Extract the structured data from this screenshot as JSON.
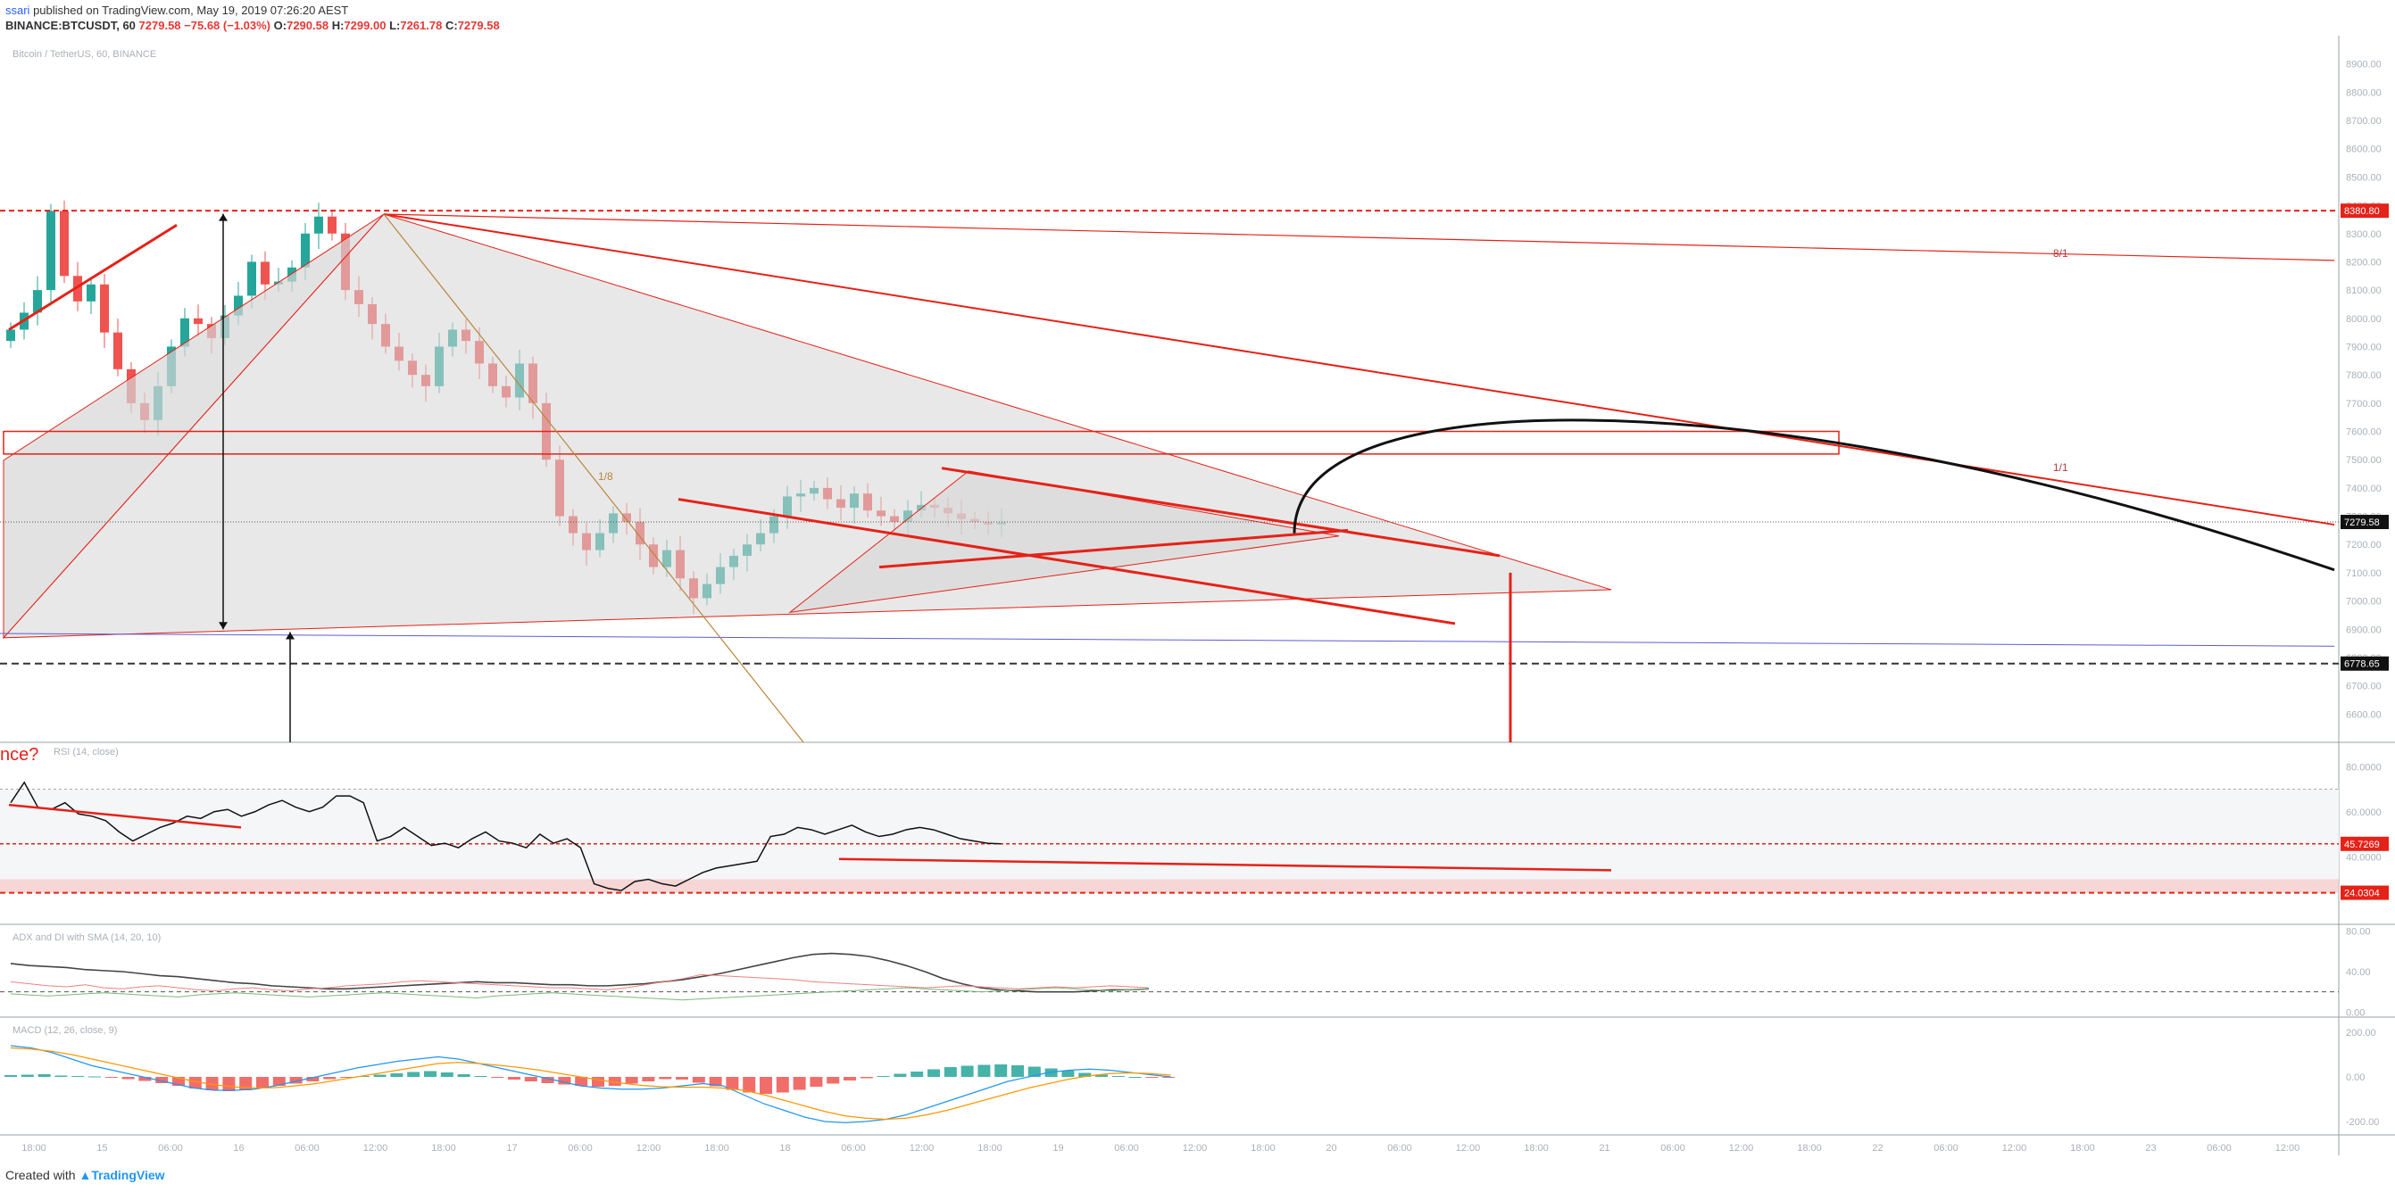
{
  "header": {
    "user": "ssari",
    "published_text": "published on TradingView.com, May 19, 2019 07:26:20 AEST",
    "symbol_interval": "BINANCE:BTCUSDT, 60",
    "last": "7279.58",
    "change": "−75.68 (−1.03%)",
    "o_label": "O:",
    "o_value": "7290.58",
    "h_label": "H:",
    "h_value": "7299.00",
    "l_label": "L:",
    "l_value": "7261.78",
    "c_label": "C:",
    "c_value": "7279.58"
  },
  "footer": {
    "created_with": "Created with",
    "brand": "TradingView",
    "brand_icon": "tradingview-logo-icon"
  },
  "colors": {
    "up": "#26a69a",
    "down": "#ef5350",
    "drawing": "#e62117",
    "fill": "#d6d6d6",
    "axis_text": "#aab0b8",
    "price_label_dark": "#111111",
    "price_label_red": "#e62117"
  },
  "chart_data": [
    {
      "type": "candlestick",
      "title": "Bitcoin / TetherUS, 60, BINANCE",
      "ylim": [
        6500,
        9000
      ],
      "yticks": [
        "8900.00",
        "8800.00",
        "8700.00",
        "8600.00",
        "8500.00",
        "8400.00",
        "8300.00",
        "8200.00",
        "8100.00",
        "8000.00",
        "7900.00",
        "7800.00",
        "7700.00",
        "7600.00",
        "7500.00",
        "7400.00",
        "7300.00",
        "7200.00",
        "7100.00",
        "7000.00",
        "6900.00",
        "6800.00",
        "6700.00",
        "6600.00"
      ],
      "xticks": [
        "18:00",
        "15",
        "06:00",
        "16",
        "06:00",
        "12:00",
        "18:00",
        "17",
        "06:00",
        "12:00",
        "18:00",
        "18",
        "06:00",
        "12:00",
        "18:00",
        "19",
        "06:00",
        "12:00",
        "18:00",
        "20",
        "06:00",
        "12:00",
        "18:00",
        "21",
        "06:00",
        "12:00",
        "18:00",
        "22",
        "06:00",
        "12:00",
        "18:00",
        "23",
        "06:00",
        "12:00"
      ],
      "price_labels": [
        {
          "value": 8380.8,
          "text": "8380.80",
          "style": "red"
        },
        {
          "value": 7279.58,
          "text": "7279.58",
          "style": "dark"
        },
        {
          "value": 6778.65,
          "text": "6778.65",
          "style": "dark"
        }
      ],
      "annotations": [
        {
          "text": "8/1",
          "value": 8230
        },
        {
          "text": "1/1",
          "value": 7440
        },
        {
          "text": "1/8",
          "value": 7440
        }
      ],
      "series_ohlc_anchor_closes": [
        7960,
        8020,
        8100,
        8380,
        8150,
        8060,
        8120,
        7950,
        7820,
        7700,
        7640,
        7760,
        7900,
        8000,
        7980,
        7930,
        8010,
        8080,
        8200,
        8120,
        8130,
        8180,
        8300,
        8360,
        8300,
        8100,
        8050,
        7980,
        7900,
        7850,
        7800,
        7760,
        7900,
        7960,
        7920,
        7840,
        7760,
        7720,
        7840,
        7700,
        7500,
        7300,
        7240,
        7180,
        7240,
        7310,
        7280,
        7200,
        7120,
        7180,
        7080,
        7010,
        7060,
        7120,
        7160,
        7200,
        7240,
        7300,
        7370,
        7380,
        7400,
        7360,
        7330,
        7380,
        7320,
        7300,
        7280,
        7320,
        7340,
        7330,
        7310,
        7290,
        7280,
        7270,
        7279.58
      ]
    },
    {
      "type": "line",
      "title": "RSI (14, close)",
      "heading_text": "nce?",
      "ylim": [
        10,
        90
      ],
      "yticks": [
        "80.0000",
        "60.0000",
        "40.0000"
      ],
      "price_labels": [
        {
          "value": 45.7269,
          "text": "45.7269",
          "style": "red"
        },
        {
          "value": 24.0304,
          "text": "24.0304",
          "style": "red"
        }
      ],
      "values": [
        64,
        73,
        62,
        61,
        64,
        59,
        58,
        56,
        51,
        47,
        50,
        53,
        55,
        58,
        57,
        60,
        61,
        58,
        60,
        63,
        65,
        62,
        60,
        62,
        67,
        67,
        64,
        47,
        49,
        53,
        49,
        45,
        46,
        44,
        48,
        51,
        47,
        46,
        44,
        50,
        46,
        48,
        44,
        28,
        26,
        25,
        29,
        30,
        28,
        27,
        30,
        33,
        35,
        36,
        37,
        38,
        49,
        50,
        53,
        52,
        50,
        52,
        54,
        51,
        49,
        50,
        52,
        53,
        52,
        50,
        48,
        47,
        46,
        45.7269
      ]
    },
    {
      "type": "line",
      "title": "ADX and DI with SMA (14, 20, 10)",
      "ylim": [
        -5,
        85
      ],
      "yticks": [
        "80.00",
        "40.00",
        "0.00"
      ],
      "series": [
        {
          "values": [
            48,
            46,
            45,
            44,
            42,
            41,
            40,
            38,
            36,
            35,
            33,
            31,
            29,
            28,
            26,
            25,
            24,
            23,
            23,
            24,
            25,
            26,
            27,
            28,
            29,
            30,
            29,
            29,
            28,
            27,
            27,
            26,
            26,
            27,
            28,
            30,
            32,
            35,
            38,
            42,
            46,
            50,
            54,
            57,
            58,
            57,
            55,
            51,
            46,
            40,
            33,
            28,
            24,
            22,
            21,
            20,
            20,
            20,
            21,
            22,
            22,
            23
          ]
        },
        {
          "values": [
            30,
            28,
            26,
            25,
            27,
            24,
            23,
            25,
            26,
            24,
            22,
            21,
            23,
            24,
            22,
            21,
            23,
            24,
            26,
            27,
            28,
            30,
            31,
            30,
            29,
            28,
            27,
            26,
            25,
            24,
            24,
            23,
            22,
            24,
            27,
            30,
            33,
            37,
            36,
            35,
            34,
            33,
            32,
            30,
            29,
            28,
            27,
            26,
            25,
            24,
            25,
            26,
            25,
            24,
            23,
            24,
            25,
            24,
            25,
            26,
            25,
            24
          ]
        },
        {
          "values": [
            18,
            17,
            16,
            17,
            18,
            19,
            18,
            17,
            16,
            15,
            17,
            18,
            19,
            18,
            17,
            16,
            15,
            16,
            17,
            18,
            19,
            18,
            17,
            16,
            15,
            14,
            16,
            17,
            18,
            19,
            18,
            17,
            16,
            15,
            14,
            13,
            12,
            13,
            14,
            15,
            16,
            17,
            18,
            19,
            20,
            21,
            22,
            23,
            24,
            23,
            22,
            21,
            20,
            21,
            22,
            23,
            24,
            23,
            22,
            21,
            22,
            23
          ]
        }
      ]
    },
    {
      "type": "bar",
      "title": "MACD (12, 26, close, 9)",
      "ylim": [
        -260,
        260
      ],
      "yticks": [
        "200.00",
        "0.00",
        "-200.00"
      ],
      "histogram": [
        8,
        10,
        12,
        6,
        4,
        2,
        -4,
        -10,
        -18,
        -28,
        -40,
        -52,
        -60,
        -64,
        -60,
        -50,
        -40,
        -30,
        -20,
        -10,
        -4,
        4,
        10,
        16,
        22,
        26,
        20,
        12,
        4,
        -4,
        -12,
        -20,
        -28,
        -34,
        -40,
        -44,
        -40,
        -30,
        -20,
        -10,
        -12,
        -26,
        -42,
        -58,
        -70,
        -76,
        -70,
        -58,
        -44,
        -30,
        -16,
        -6,
        4,
        14,
        24,
        34,
        44,
        50,
        54,
        56,
        52,
        46,
        38,
        28,
        18,
        10,
        4,
        0,
        -2,
        -4
      ],
      "series": [
        {
          "values": [
            140,
            130,
            110,
            80,
            50,
            30,
            10,
            -10,
            -30,
            -50,
            -60,
            -60,
            -55,
            -40,
            -20,
            0,
            20,
            40,
            55,
            70,
            80,
            90,
            80,
            60,
            40,
            20,
            0,
            -20,
            -40,
            -50,
            -55,
            -55,
            -50,
            -40,
            -30,
            -40,
            -80,
            -120,
            -150,
            -180,
            -200,
            -205,
            -200,
            -190,
            -170,
            -140,
            -110,
            -80,
            -50,
            -20,
            0,
            20,
            30,
            35,
            30,
            20,
            10,
            0
          ]
        },
        {
          "values": [
            130,
            125,
            115,
            100,
            80,
            60,
            40,
            20,
            0,
            -20,
            -35,
            -45,
            -50,
            -48,
            -40,
            -30,
            -15,
            0,
            15,
            30,
            45,
            60,
            65,
            60,
            52,
            42,
            30,
            15,
            0,
            -15,
            -28,
            -38,
            -44,
            -46,
            -46,
            -50,
            -60,
            -80,
            -105,
            -130,
            -155,
            -175,
            -185,
            -190,
            -185,
            -170,
            -150,
            -125,
            -100,
            -75,
            -50,
            -30,
            -10,
            5,
            15,
            18,
            15,
            8
          ]
        }
      ]
    }
  ]
}
